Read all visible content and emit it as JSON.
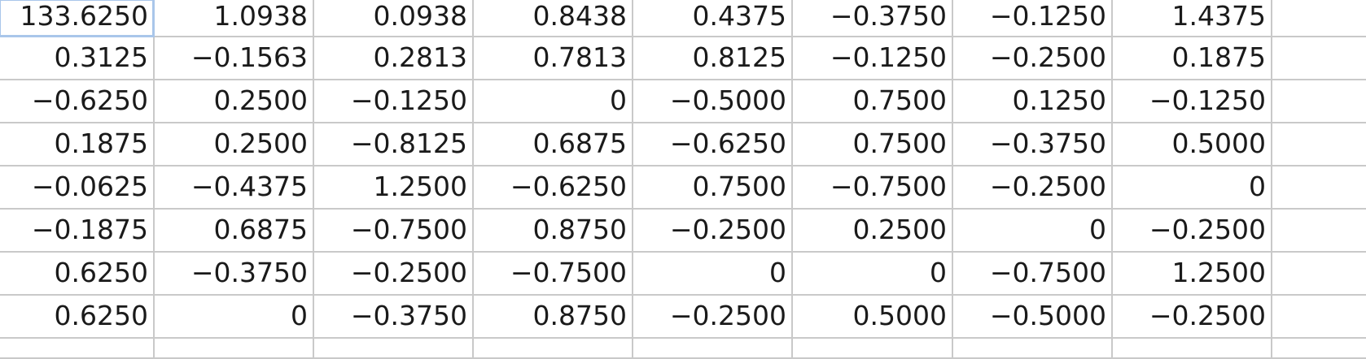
{
  "spreadsheet": {
    "selected_cell": [
      0,
      0
    ],
    "rows": [
      [
        "133.6250",
        "1.0938",
        "0.0938",
        "0.8438",
        "0.4375",
        "−0.3750",
        "−0.1250",
        "1.4375",
        ""
      ],
      [
        "0.3125",
        "−0.1563",
        "0.2813",
        "0.7813",
        "0.8125",
        "−0.1250",
        "−0.2500",
        "0.1875",
        ""
      ],
      [
        "−0.6250",
        "0.2500",
        "−0.1250",
        "0",
        "−0.5000",
        "0.7500",
        "0.1250",
        "−0.1250",
        ""
      ],
      [
        "0.1875",
        "0.2500",
        "−0.8125",
        "0.6875",
        "−0.6250",
        "0.7500",
        "−0.3750",
        "0.5000",
        ""
      ],
      [
        "−0.0625",
        "−0.4375",
        "1.2500",
        "−0.6250",
        "0.7500",
        "−0.7500",
        "−0.2500",
        "0",
        ""
      ],
      [
        "−0.1875",
        "0.6875",
        "−0.7500",
        "0.8750",
        "−0.2500",
        "0.2500",
        "0",
        "−0.2500",
        ""
      ],
      [
        "0.6250",
        "−0.3750",
        "−0.2500",
        "−0.7500",
        "0",
        "0",
        "−0.7500",
        "1.2500",
        ""
      ],
      [
        "0.6250",
        "0",
        "−0.3750",
        "0.8750",
        "−0.2500",
        "0.5000",
        "−0.5000",
        "−0.2500",
        ""
      ],
      [
        "",
        "",
        "",
        "",
        "",
        "",
        "",
        "",
        ""
      ]
    ]
  }
}
